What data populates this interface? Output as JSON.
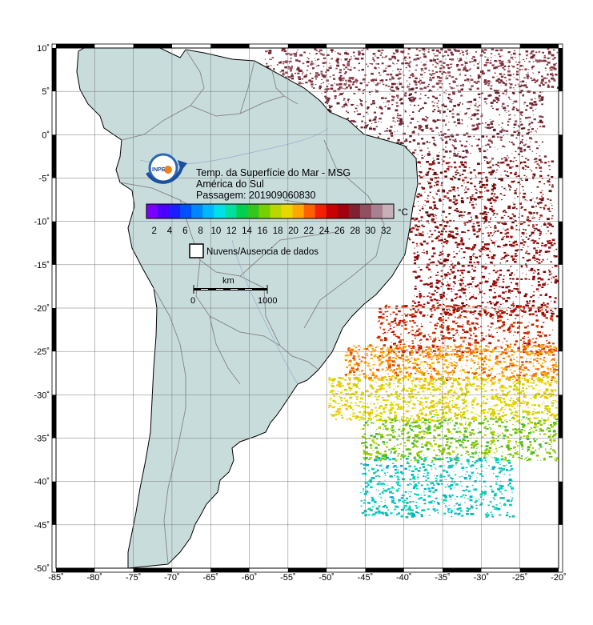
{
  "title": {
    "line1": "Temp. da Superfície do Mar - MSG",
    "line2": "América do Sul",
    "line3": "Passagem: 201909060830"
  },
  "logo_text": "INPE",
  "colorbar": {
    "unit": "°C",
    "ticks": [
      "2",
      "4",
      "6",
      "8",
      "10",
      "12",
      "14",
      "16",
      "18",
      "20",
      "22",
      "24",
      "26",
      "28",
      "30",
      "32"
    ],
    "min": 1,
    "max": 33,
    "colors": [
      "#7a00ff",
      "#4b00ff",
      "#1c1cff",
      "#0050ff",
      "#0086ff",
      "#00b8ff",
      "#00e0e6",
      "#00e0a0",
      "#00d050",
      "#30c820",
      "#78d000",
      "#b8d800",
      "#e8d800",
      "#ffa800",
      "#ff6000",
      "#f02000",
      "#c80000",
      "#a00010",
      "#802030",
      "#905060",
      "#a88090",
      "#c8b0b8"
    ]
  },
  "legend": {
    "no_data_label": "Nuvens/Ausencia de dados"
  },
  "scalebar": {
    "unit": "km",
    "start": "0",
    "end": "1000"
  },
  "axes": {
    "lon_ticks": [
      "-85˚",
      "-80˚",
      "-75˚",
      "-70˚",
      "-65˚",
      "-60˚",
      "-55˚",
      "-50˚",
      "-45˚",
      "-40˚",
      "-35˚",
      "-30˚",
      "-25˚",
      "-20˚"
    ],
    "lat_ticks": [
      "10˚",
      "5˚",
      "0˚",
      "-5˚",
      "-10˚",
      "-15˚",
      "-20˚",
      "-25˚",
      "-30˚",
      "-35˚",
      "-40˚",
      "-45˚",
      "-50˚"
    ],
    "lon_range": [
      -85,
      -20
    ],
    "lat_range": [
      -50,
      10
    ]
  },
  "colors": {
    "land": "#c8dcdc",
    "border": "#8c8c8c",
    "frame": "#000000"
  }
}
